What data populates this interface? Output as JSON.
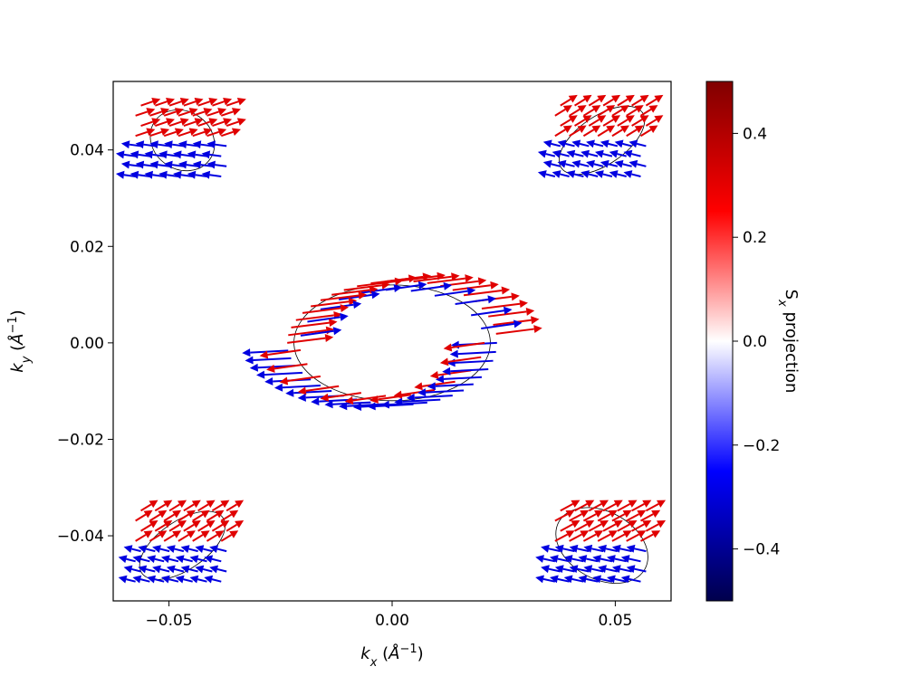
{
  "chart_data": {
    "type": "quiver",
    "xlabel": "k_x  (Å^{-1})",
    "ylabel": "k_y  (Å^{-1})",
    "xlim": [
      -0.0625,
      0.0625
    ],
    "ylim": [
      -0.0535,
      0.0542
    ],
    "x_ticks": [
      {
        "value": -0.05,
        "label": "−0.05"
      },
      {
        "value": 0.0,
        "label": "0.00"
      },
      {
        "value": 0.05,
        "label": "0.05"
      }
    ],
    "y_ticks": [
      {
        "value": -0.04,
        "label": "−0.04"
      },
      {
        "value": -0.02,
        "label": "−0.02"
      },
      {
        "value": 0.0,
        "label": "0.00"
      },
      {
        "value": 0.02,
        "label": "0.02"
      },
      {
        "value": 0.04,
        "label": "0.04"
      }
    ],
    "colorbar": {
      "label": "S_x projection",
      "range": [
        -0.5,
        0.5
      ],
      "colormap": "seismic",
      "colors": [
        "#00004c",
        "#0000ff",
        "#ffffff",
        "#ff0000",
        "#800000"
      ],
      "ticks": [
        {
          "value": 0.4,
          "label": "0.4"
        },
        {
          "value": 0.2,
          "label": "0.2"
        },
        {
          "value": 0.0,
          "label": "0.0"
        },
        {
          "value": -0.2,
          "label": "−0.2"
        },
        {
          "value": -0.4,
          "label": "−0.4"
        }
      ]
    },
    "contours": [
      {
        "name": "center",
        "cx": 0.0,
        "cy": 0.0,
        "rx": 0.022,
        "ry": 0.012
      },
      {
        "name": "top-left",
        "cx": -0.047,
        "cy": 0.042,
        "rx": 0.0075,
        "ry": 0.006,
        "tilt": -0.6
      },
      {
        "name": "top-right",
        "cx": 0.047,
        "cy": 0.042,
        "rx": 0.011,
        "ry": 0.005,
        "tilt": 0.6
      },
      {
        "name": "bottom-left",
        "cx": -0.047,
        "cy": -0.042,
        "rx": 0.011,
        "ry": 0.005,
        "tilt": 0.6
      },
      {
        "name": "bottom-right",
        "cx": 0.047,
        "cy": -0.042,
        "rx": 0.011,
        "ry": 0.007,
        "tilt": -0.5
      }
    ],
    "arrow_fields": [
      {
        "pocket": "center",
        "cx": 0.0,
        "cy": 0.0,
        "rx": 0.0235,
        "ry": 0.0128,
        "dirs": [
          0.0115,
          -0.0025
        ],
        "upper_color": "#e00000",
        "lower_color": "#0000e0"
      },
      {
        "pocket": "top-left",
        "cx": -0.047,
        "cy": 0.042,
        "dirs": [
          0.008,
          0.0025
        ],
        "upper_color": "#e00000",
        "lower_color": "#0000e0"
      },
      {
        "pocket": "top-right",
        "cx": 0.047,
        "cy": 0.042,
        "dirs": [
          0.007,
          0.004
        ],
        "upper_color": "#e00000",
        "lower_color": "#0000e0"
      },
      {
        "pocket": "bottom-left",
        "cx": -0.047,
        "cy": -0.042,
        "dirs": [
          0.007,
          0.004
        ],
        "upper_color": "#e00000",
        "lower_color": "#0000e0"
      },
      {
        "pocket": "bottom-right",
        "cx": 0.047,
        "cy": -0.042,
        "dirs": [
          0.008,
          0.004
        ],
        "upper_color": "#e00000",
        "lower_color": "#0000e0"
      }
    ]
  }
}
